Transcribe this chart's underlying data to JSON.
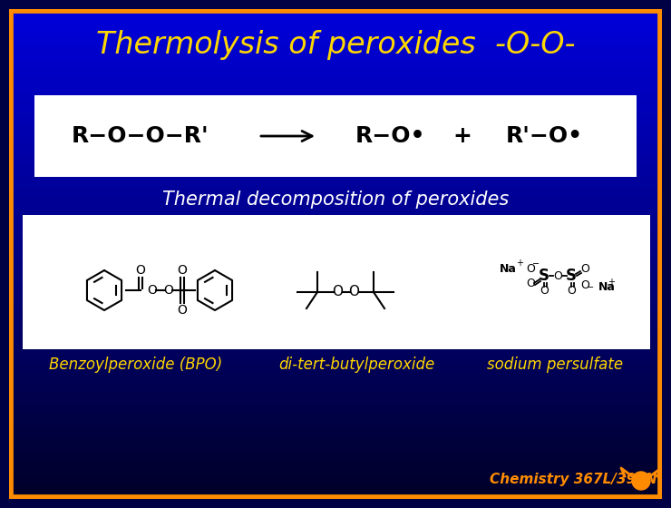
{
  "title": "Thermolysis of peroxides  -O-O-",
  "title_color": "#FFD700",
  "title_fontsize": 24,
  "bg_top_color": "#0000CC",
  "bg_bottom_color": "#000033",
  "border_color": "#FF8C00",
  "border_lw": 7,
  "reaction_box_color": "#FFFFFF",
  "subtitle": "Thermal decomposition of peroxides",
  "subtitle_color": "#FFFFFF",
  "subtitle_fontsize": 15,
  "label1": "Benzoylperoxide (BPO)",
  "label2": "di-tert-butylperoxide",
  "label3": "sodium persulfate",
  "label_color": "#FFD700",
  "label_fontsize": 12,
  "footer": "Chemistry 367L/392N",
  "footer_color": "#FF8C00",
  "footer_fontsize": 11,
  "structures_box_color": "#FFFFFF"
}
